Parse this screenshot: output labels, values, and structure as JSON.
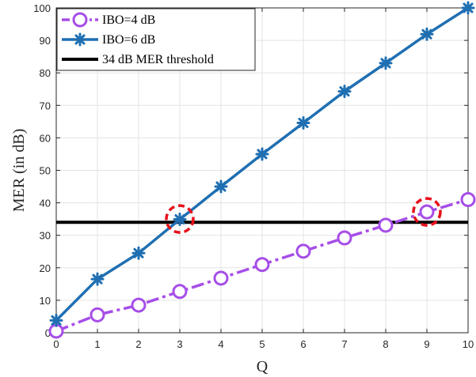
{
  "chart_data": {
    "type": "line",
    "xlabel": "Q",
    "ylabel": "MER (in dB)",
    "xlim": [
      0,
      10
    ],
    "ylim": [
      0,
      100
    ],
    "x_ticks": [
      0,
      1,
      2,
      3,
      4,
      5,
      6,
      7,
      8,
      9,
      10
    ],
    "y_ticks": [
      0,
      10,
      20,
      30,
      40,
      50,
      60,
      70,
      80,
      90,
      100
    ],
    "grid": true,
    "legend_position": "top-left",
    "series": [
      {
        "name": "IBO=4 dB",
        "color": "#a64ee8",
        "line_style": "dash-dot",
        "marker": "circle",
        "x": [
          0,
          1,
          2,
          3,
          4,
          5,
          6,
          7,
          8,
          9,
          10
        ],
        "y": [
          0.5,
          5.5,
          8.5,
          12.7,
          16.8,
          21,
          25.1,
          29.2,
          33.1,
          37.2,
          41
        ]
      },
      {
        "name": "IBO=6 dB",
        "color": "#1f6fb2",
        "line_style": "solid",
        "marker": "asterisk",
        "x": [
          0,
          1,
          2,
          3,
          4,
          5,
          6,
          7,
          8,
          9,
          10
        ],
        "y": [
          3.8,
          16.5,
          24.5,
          34.9,
          45,
          55,
          64.6,
          74.3,
          83,
          91.9,
          100
        ]
      },
      {
        "name": "34 dB MER threshold",
        "color": "#000000",
        "line_style": "solid",
        "marker": "none",
        "x": [
          0,
          10
        ],
        "y": [
          34,
          34
        ]
      }
    ],
    "highlights": [
      {
        "x": 3,
        "y": 35,
        "color": "#e8101a",
        "shape": "dashed-circle"
      },
      {
        "x": 9,
        "y": 37.2,
        "color": "#e8101a",
        "shape": "dashed-circle"
      }
    ]
  }
}
